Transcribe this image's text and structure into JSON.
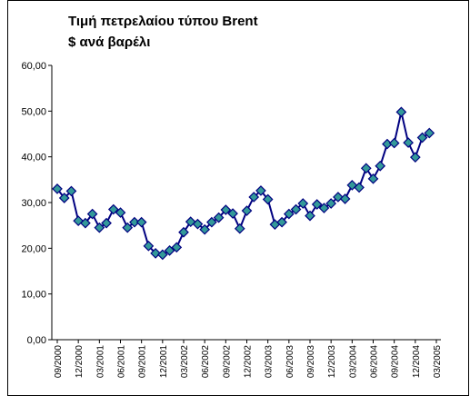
{
  "chart_data": {
    "type": "line",
    "title": "Τιμή πετρελαίου τύπου Brent",
    "subtitle": "$ ανά βαρέλι",
    "categories": [
      "09/2000",
      null,
      null,
      "12/2000",
      null,
      null,
      "03/2001",
      null,
      null,
      "06/2001",
      null,
      null,
      "09/2001",
      null,
      null,
      "12/2001",
      null,
      null,
      "03/2002",
      null,
      null,
      "06/2002",
      null,
      null,
      "09/2002",
      null,
      null,
      "12/2002",
      null,
      null,
      "03/2003",
      null,
      null,
      "06/2003",
      null,
      null,
      "09/2003",
      null,
      null,
      "12/2003",
      null,
      null,
      "03/2004",
      null,
      null,
      "06/2004",
      null,
      null,
      "09/2004",
      null,
      null,
      "12/2004",
      null,
      null,
      "03/2005"
    ],
    "series": [
      {
        "name": "Brent",
        "color": "#000080",
        "marker_color": "#339999",
        "values": [
          33.0,
          31.0,
          32.5,
          26.0,
          25.5,
          27.5,
          24.5,
          25.5,
          28.5,
          27.8,
          24.5,
          25.7,
          25.7,
          20.5,
          18.9,
          18.6,
          19.5,
          20.2,
          23.5,
          25.8,
          25.3,
          24.1,
          25.7,
          26.7,
          28.4,
          27.6,
          24.3,
          28.2,
          31.2,
          32.6,
          30.7,
          25.2,
          25.7,
          27.5,
          28.5,
          29.8,
          27.1,
          29.6,
          28.8,
          29.8,
          31.2,
          30.8,
          33.8,
          33.3,
          37.5,
          35.2,
          38.0,
          42.8,
          43.0,
          49.8,
          43.1,
          39.9,
          44.2,
          45.2,
          null
        ]
      }
    ],
    "ylim": [
      0,
      60
    ],
    "yticks": [
      {
        "value": 0,
        "label": "0,00"
      },
      {
        "value": 10,
        "label": "10,00"
      },
      {
        "value": 20,
        "label": "20,00"
      },
      {
        "value": 30,
        "label": "30,00"
      },
      {
        "value": 40,
        "label": "40,00"
      },
      {
        "value": 50,
        "label": "50,00"
      },
      {
        "value": 60,
        "label": "60,00"
      }
    ],
    "grid": false
  }
}
